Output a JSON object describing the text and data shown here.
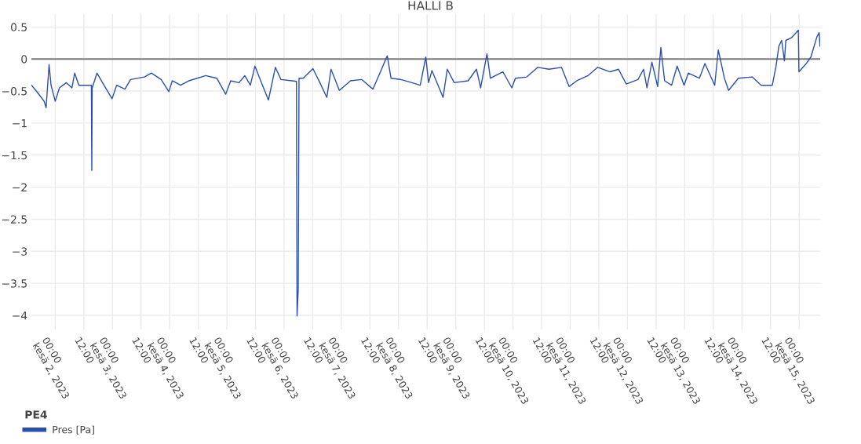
{
  "chart_data": {
    "type": "line",
    "title": "HALLI B",
    "legend_title": "PE4",
    "legend": "bottom",
    "grid": true,
    "marker": "none",
    "line_style": "solid",
    "xlim": [
      "2023-06-01T14:00",
      "2023-06-15T08:50"
    ],
    "ylim": [
      -4.22,
      0.7
    ],
    "yticks": [
      {
        "value": 0.5,
        "label": "0.5"
      },
      {
        "value": 0,
        "label": "0"
      },
      {
        "value": -0.5,
        "label": "−0.5"
      },
      {
        "value": -1,
        "label": "−1"
      },
      {
        "value": -1.5,
        "label": "−1.5"
      },
      {
        "value": -2,
        "label": "−2"
      },
      {
        "value": -2.5,
        "label": "−2.5"
      },
      {
        "value": -3,
        "label": "−3"
      },
      {
        "value": -3.5,
        "label": "−3.5"
      },
      {
        "value": -4,
        "label": "−4"
      }
    ],
    "xticks": [
      {
        "value": "2023-06-02T00:00",
        "label": "00:00\nkesä 2, 2023"
      },
      {
        "value": "2023-06-02T12:00",
        "label": "12:00"
      },
      {
        "value": "2023-06-03T00:00",
        "label": "00:00\nkesä 3, 2023"
      },
      {
        "value": "2023-06-03T12:00",
        "label": "12:00"
      },
      {
        "value": "2023-06-04T00:00",
        "label": "00:00\nkesä 4, 2023"
      },
      {
        "value": "2023-06-04T12:00",
        "label": "12:00"
      },
      {
        "value": "2023-06-05T00:00",
        "label": "00:00\nkesä 5, 2023"
      },
      {
        "value": "2023-06-05T12:00",
        "label": "12:00"
      },
      {
        "value": "2023-06-06T00:00",
        "label": "00:00\nkesä 6, 2023"
      },
      {
        "value": "2023-06-06T12:00",
        "label": "12:00"
      },
      {
        "value": "2023-06-07T00:00",
        "label": "00:00\nkesä 7, 2023"
      },
      {
        "value": "2023-06-07T12:00",
        "label": "12:00"
      },
      {
        "value": "2023-06-08T00:00",
        "label": "00:00\nkesä 8, 2023"
      },
      {
        "value": "2023-06-08T12:00",
        "label": "12:00"
      },
      {
        "value": "2023-06-09T00:00",
        "label": "00:00\nkesä 9, 2023"
      },
      {
        "value": "2023-06-09T12:00",
        "label": "12:00"
      },
      {
        "value": "2023-06-10T00:00",
        "label": "00:00\nkesä 10, 2023"
      },
      {
        "value": "2023-06-10T12:00",
        "label": "12:00"
      },
      {
        "value": "2023-06-11T00:00",
        "label": "00:00\nkesä 11, 2023"
      },
      {
        "value": "2023-06-11T12:00",
        "label": "12:00"
      },
      {
        "value": "2023-06-12T00:00",
        "label": "00:00\nkesä 12, 2023"
      },
      {
        "value": "2023-06-12T12:00",
        "label": "12:00"
      },
      {
        "value": "2023-06-13T00:00",
        "label": "00:00\nkesä 13, 2023"
      },
      {
        "value": "2023-06-13T12:00",
        "label": "12:00"
      },
      {
        "value": "2023-06-14T00:00",
        "label": "00:00\nkesä 14, 2023"
      },
      {
        "value": "2023-06-14T12:00",
        "label": "12:00"
      },
      {
        "value": "2023-06-15T00:00",
        "label": "00:00\nkesä 15, 2023"
      }
    ],
    "ref_lines": [
      {
        "axis": "y",
        "value": 0,
        "color": "#7a7a7a"
      }
    ],
    "series": [
      {
        "name": "Pres [Pa]",
        "color": "#2a4fb0",
        "x": [
          "2023-06-01T14:05",
          "2023-06-01T15:50",
          "2023-06-01T18:10",
          "2023-06-01T19:20",
          "2023-06-01T20:10",
          "2023-06-01T21:25",
          "2023-06-01T22:15",
          "2023-06-02T00:00",
          "2023-06-02T01:45",
          "2023-06-02T04:40",
          "2023-06-02T07:00",
          "2023-06-02T08:10",
          "2023-06-02T09:55",
          "2023-06-02T12:50",
          "2023-06-02T15:10",
          "2023-06-02T15:20",
          "2023-06-02T15:30",
          "2023-06-02T17:30",
          "2023-06-02T19:50",
          "2023-06-02T23:50",
          "2023-06-03T01:45",
          "2023-06-03T05:15",
          "2023-06-03T07:35",
          "2023-06-03T13:25",
          "2023-06-03T16:20",
          "2023-06-03T20:25",
          "2023-06-03T23:40",
          "2023-06-04T01:05",
          "2023-06-04T04:35",
          "2023-06-04T08:05",
          "2023-06-04T15:05",
          "2023-06-04T19:45",
          "2023-06-04T23:30",
          "2023-06-05T01:35",
          "2023-06-05T05:05",
          "2023-06-05T07:30",
          "2023-06-05T09:50",
          "2023-06-05T11:45",
          "2023-06-05T14:30",
          "2023-06-05T17:25",
          "2023-06-05T20:20",
          "2023-06-05T22:40",
          "2023-06-06T03:20",
          "2023-06-06T05:10",
          "2023-06-06T05:25",
          "2023-06-06T05:55",
          "2023-06-06T06:15",
          "2023-06-06T08:00",
          "2023-06-06T12:05",
          "2023-06-06T15:00",
          "2023-06-06T17:55",
          "2023-06-06T19:40",
          "2023-06-06T23:10",
          "2023-06-07T03:50",
          "2023-06-07T08:30",
          "2023-06-07T13:15",
          "2023-06-07T16:10",
          "2023-06-07T19:15",
          "2023-06-07T20:50",
          "2023-06-08T00:55",
          "2023-06-08T05:35",
          "2023-06-08T09:05",
          "2023-06-08T11:25",
          "2023-06-08T12:35",
          "2023-06-08T14:00",
          "2023-06-08T18:40",
          "2023-06-08T20:25",
          "2023-06-08T23:20",
          "2023-06-09T05:10",
          "2023-06-09T08:40",
          "2023-06-09T10:25",
          "2023-06-09T13:05",
          "2023-06-09T14:30",
          "2023-06-09T19:45",
          "2023-06-09T23:30",
          "2023-06-10T01:00",
          "2023-06-10T05:45",
          "2023-06-10T10:25",
          "2023-06-10T15:05",
          "2023-06-10T20:20",
          "2023-06-10T23:30",
          "2023-06-11T02:45",
          "2023-06-11T07:25",
          "2023-06-11T11:30",
          "2023-06-11T16:45",
          "2023-06-11T20:15",
          "2023-06-11T23:30",
          "2023-06-12T04:25",
          "2023-06-12T06:45",
          "2023-06-12T08:10",
          "2023-06-12T10:15",
          "2023-06-12T12:40",
          "2023-06-12T14:00",
          "2023-06-12T15:35",
          "2023-06-12T18:30",
          "2023-06-12T20:50",
          "2023-06-12T23:45",
          "2023-06-13T01:30",
          "2023-06-13T06:10",
          "2023-06-13T08:30",
          "2023-06-13T12:35",
          "2023-06-13T14:05",
          "2023-06-13T16:40",
          "2023-06-13T18:25",
          "2023-06-13T22:30",
          "2023-06-14T04:20",
          "2023-06-14T08:05",
          "2023-06-14T12:45",
          "2023-06-14T14:20",
          "2023-06-14T15:30",
          "2023-06-14T16:40",
          "2023-06-14T17:50",
          "2023-06-14T18:25",
          "2023-06-14T20:45",
          "2023-06-14T23:40",
          "2023-06-14T23:55",
          "2023-06-15T02:35",
          "2023-06-15T04:55",
          "2023-06-15T07:30",
          "2023-06-15T08:25",
          "2023-06-15T08:45"
        ],
        "values": [
          -0.41,
          -0.49,
          -0.6,
          -0.66,
          -0.76,
          -0.09,
          -0.41,
          -0.66,
          -0.45,
          -0.37,
          -0.45,
          -0.22,
          -0.41,
          -0.41,
          -0.41,
          -1.74,
          -0.45,
          -0.22,
          -0.37,
          -0.62,
          -0.41,
          -0.47,
          -0.32,
          -0.28,
          -0.22,
          -0.32,
          -0.51,
          -0.34,
          -0.41,
          -0.34,
          -0.26,
          -0.3,
          -0.55,
          -0.34,
          -0.37,
          -0.26,
          -0.41,
          -0.11,
          -0.37,
          -0.64,
          -0.13,
          -0.32,
          -0.34,
          -0.35,
          -4.01,
          -3.6,
          -0.3,
          -0.3,
          -0.15,
          -0.37,
          -0.6,
          -0.16,
          -0.49,
          -0.34,
          -0.32,
          -0.47,
          -0.22,
          0.05,
          -0.3,
          -0.32,
          -0.37,
          -0.41,
          0.03,
          -0.37,
          -0.18,
          -0.6,
          -0.16,
          -0.37,
          -0.34,
          -0.16,
          -0.45,
          0.08,
          -0.3,
          -0.2,
          -0.45,
          -0.3,
          -0.28,
          -0.13,
          -0.16,
          -0.13,
          -0.43,
          -0.34,
          -0.26,
          -0.13,
          -0.2,
          -0.16,
          -0.39,
          -0.32,
          -0.16,
          -0.45,
          -0.05,
          -0.43,
          0.18,
          -0.34,
          -0.41,
          -0.11,
          -0.41,
          -0.22,
          -0.3,
          -0.07,
          -0.41,
          0.14,
          -0.3,
          -0.49,
          -0.3,
          -0.28,
          -0.41,
          -0.41,
          -0.11,
          0.2,
          0.29,
          -0.03,
          0.29,
          0.33,
          0.45,
          -0.2,
          -0.09,
          0.03,
          0.35,
          0.41,
          0.2
        ]
      }
    ]
  }
}
